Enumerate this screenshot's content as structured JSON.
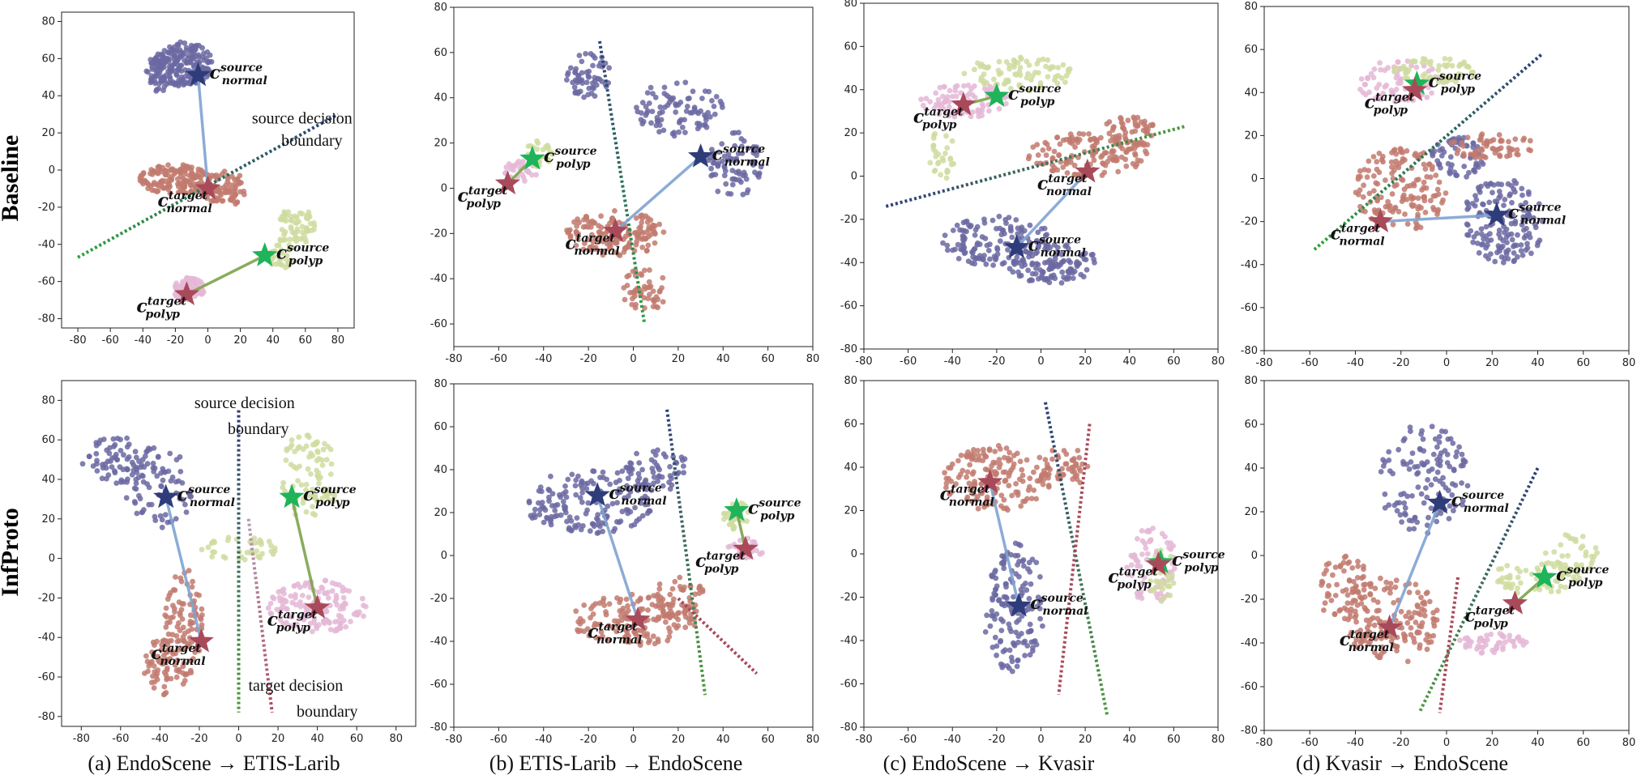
{
  "row_labels": [
    "Baseline",
    "InfProto"
  ],
  "captions": [
    "(a) EndoScene → ETIS-Larib",
    "(b) ETIS-Larib → EndoScene",
    "(c) EndoScene → Kvasir",
    "(d) Kvasir → EndoScene"
  ],
  "colors": {
    "normal": "#6b68a2",
    "polyp_target": "#e4b7d6",
    "polyp_source": "#cfdca0",
    "target_normal": "#c27a6f",
    "star_source_normal": "#2e3d7a",
    "star_target": "#a94a5a",
    "star_source_polyp": "#1fb35a"
  },
  "chart_data": [
    {
      "id": "baseline-a",
      "type": "scatter",
      "xlim": [
        -90,
        90
      ],
      "ylim": [
        -85,
        85
      ],
      "xticks": [
        -80,
        -60,
        -40,
        -20,
        0,
        20,
        40,
        60,
        80
      ],
      "yticks": [
        -80,
        -60,
        -40,
        -20,
        0,
        20,
        40,
        60,
        80
      ],
      "prototypes": [
        {
          "label": "c",
          "sup": "source",
          "sub": "normal",
          "x": -6,
          "y": 51,
          "color": "#2e3d7a"
        },
        {
          "label": "c",
          "sup": "target",
          "sub": "normal",
          "x": 0,
          "y": -10,
          "color": "#a94a5a"
        },
        {
          "label": "c",
          "sup": "source",
          "sub": "polyp",
          "x": 35,
          "y": -46,
          "color": "#1fb35a"
        },
        {
          "label": "c",
          "sup": "target",
          "sub": "polyp",
          "x": -13,
          "y": -67,
          "color": "#a94a5a"
        }
      ],
      "annotations": [
        {
          "text": "source decision",
          "x": 58,
          "y": 25
        },
        {
          "text": "boundary",
          "x": 64,
          "y": 13
        }
      ]
    },
    {
      "id": "baseline-b",
      "type": "scatter",
      "xlim": [
        -80,
        80
      ],
      "ylim": [
        -70,
        80
      ],
      "xticks": [
        -80,
        -60,
        -40,
        -20,
        0,
        20,
        40,
        60,
        80
      ],
      "yticks": [
        -60,
        -40,
        -20,
        0,
        20,
        40,
        60,
        80
      ],
      "prototypes": [
        {
          "label": "c",
          "sup": "source",
          "sub": "normal",
          "x": 30,
          "y": 14,
          "color": "#2e3d7a"
        },
        {
          "label": "c",
          "sup": "target",
          "sub": "normal",
          "x": -8,
          "y": -19,
          "color": "#a94a5a"
        },
        {
          "label": "c",
          "sup": "source",
          "sub": "polyp",
          "x": -45,
          "y": 13,
          "color": "#1fb35a"
        },
        {
          "label": "c",
          "sup": "target",
          "sub": "polyp",
          "x": -56,
          "y": 2,
          "color": "#a94a5a"
        }
      ],
      "annotations": []
    },
    {
      "id": "baseline-c",
      "type": "scatter",
      "xlim": [
        -80,
        80
      ],
      "ylim": [
        -80,
        80
      ],
      "xticks": [
        -80,
        -60,
        -40,
        -20,
        0,
        20,
        40,
        60,
        80
      ],
      "yticks": [
        -80,
        -60,
        -40,
        -20,
        0,
        20,
        40,
        60,
        80
      ],
      "prototypes": [
        {
          "label": "c",
          "sup": "source",
          "sub": "normal",
          "x": -11,
          "y": -33,
          "color": "#2e3d7a"
        },
        {
          "label": "c",
          "sup": "target",
          "sub": "normal",
          "x": 21,
          "y": 2,
          "color": "#a94a5a"
        },
        {
          "label": "c",
          "sup": "source",
          "sub": "polyp",
          "x": -20,
          "y": 37,
          "color": "#1fb35a"
        },
        {
          "label": "c",
          "sup": "target",
          "sub": "polyp",
          "x": -35,
          "y": 33,
          "color": "#a94a5a"
        }
      ],
      "annotations": []
    },
    {
      "id": "baseline-d",
      "type": "scatter",
      "xlim": [
        -80,
        80
      ],
      "ylim": [
        -80,
        80
      ],
      "xticks": [
        -80,
        -60,
        -40,
        -20,
        0,
        20,
        40,
        60,
        80
      ],
      "yticks": [
        -80,
        -60,
        -40,
        -20,
        0,
        20,
        40,
        60,
        80
      ],
      "prototypes": [
        {
          "label": "c",
          "sup": "source",
          "sub": "normal",
          "x": 22,
          "y": -17,
          "color": "#2e3d7a"
        },
        {
          "label": "c",
          "sup": "target",
          "sub": "normal",
          "x": -29,
          "y": -20,
          "color": "#a94a5a"
        },
        {
          "label": "c",
          "sup": "source",
          "sub": "polyp",
          "x": -13,
          "y": 44,
          "color": "#1fb35a"
        },
        {
          "label": "c",
          "sup": "target",
          "sub": "polyp",
          "x": -14,
          "y": 41,
          "color": "#a94a5a"
        }
      ],
      "annotations": []
    },
    {
      "id": "infproto-a",
      "type": "scatter",
      "xlim": [
        -90,
        90
      ],
      "ylim": [
        -85,
        90
      ],
      "xticks": [
        -80,
        -60,
        -40,
        -20,
        0,
        20,
        40,
        60,
        80
      ],
      "yticks": [
        -80,
        -60,
        -40,
        -20,
        0,
        20,
        40,
        60,
        80
      ],
      "prototypes": [
        {
          "label": "c",
          "sup": "source",
          "sub": "normal",
          "x": -37,
          "y": 31,
          "color": "#2e3d7a"
        },
        {
          "label": "c",
          "sup": "target",
          "sub": "normal",
          "x": -19,
          "y": -42,
          "color": "#a94a5a"
        },
        {
          "label": "c",
          "sup": "source",
          "sub": "polyp",
          "x": 27,
          "y": 31,
          "color": "#1fb35a"
        },
        {
          "label": "c",
          "sup": "target",
          "sub": "polyp",
          "x": 40,
          "y": -25,
          "color": "#a94a5a"
        }
      ],
      "annotations": [
        {
          "text": "source decision",
          "x": 3,
          "y": 76
        },
        {
          "text": "boundary",
          "x": 10,
          "y": 63
        },
        {
          "text": "target decision",
          "x": 29,
          "y": -67
        },
        {
          "text": "boundary",
          "x": 45,
          "y": -80
        }
      ]
    },
    {
      "id": "infproto-b",
      "type": "scatter",
      "xlim": [
        -80,
        80
      ],
      "ylim": [
        -80,
        80
      ],
      "xticks": [
        -80,
        -60,
        -40,
        -20,
        0,
        20,
        40,
        60,
        80
      ],
      "yticks": [
        -80,
        -60,
        -40,
        -20,
        0,
        20,
        40,
        60,
        80
      ],
      "prototypes": [
        {
          "label": "c",
          "sup": "source",
          "sub": "normal",
          "x": -16,
          "y": 28,
          "color": "#2e3d7a"
        },
        {
          "label": "c",
          "sup": "target",
          "sub": "normal",
          "x": 2,
          "y": -30,
          "color": "#a94a5a"
        },
        {
          "label": "c",
          "sup": "source",
          "sub": "polyp",
          "x": 46,
          "y": 21,
          "color": "#1fb35a"
        },
        {
          "label": "c",
          "sup": "target",
          "sub": "polyp",
          "x": 50,
          "y": 3,
          "color": "#a94a5a"
        }
      ],
      "annotations": []
    },
    {
      "id": "infproto-c",
      "type": "scatter",
      "xlim": [
        -80,
        80
      ],
      "ylim": [
        -80,
        80
      ],
      "xticks": [
        -80,
        -60,
        -40,
        -20,
        0,
        20,
        40,
        60,
        80
      ],
      "yticks": [
        -80,
        -60,
        -40,
        -20,
        0,
        20,
        40,
        60,
        80
      ],
      "prototypes": [
        {
          "label": "c",
          "sup": "source",
          "sub": "normal",
          "x": -10,
          "y": -24,
          "color": "#2e3d7a"
        },
        {
          "label": "c",
          "sup": "target",
          "sub": "normal",
          "x": -23,
          "y": 33,
          "color": "#a94a5a"
        },
        {
          "label": "c",
          "sup": "source",
          "sub": "polyp",
          "x": 54,
          "y": -4,
          "color": "#1fb35a"
        },
        {
          "label": "c",
          "sup": "target",
          "sub": "polyp",
          "x": 53,
          "y": -5,
          "color": "#a94a5a"
        }
      ],
      "annotations": []
    },
    {
      "id": "infproto-d",
      "type": "scatter",
      "xlim": [
        -80,
        80
      ],
      "ylim": [
        -80,
        80
      ],
      "xticks": [
        -80,
        -60,
        -40,
        -20,
        0,
        20,
        40,
        60,
        80
      ],
      "yticks": [
        -80,
        -60,
        -40,
        -20,
        0,
        20,
        40,
        60,
        80
      ],
      "prototypes": [
        {
          "label": "c",
          "sup": "source",
          "sub": "normal",
          "x": -3,
          "y": 24,
          "color": "#2e3d7a"
        },
        {
          "label": "c",
          "sup": "target",
          "sub": "normal",
          "x": -25,
          "y": -33,
          "color": "#a94a5a"
        },
        {
          "label": "c",
          "sup": "source",
          "sub": "polyp",
          "x": 43,
          "y": -10,
          "color": "#1fb35a"
        },
        {
          "label": "c",
          "sup": "target",
          "sub": "polyp",
          "x": 30,
          "y": -22,
          "color": "#a94a5a"
        }
      ],
      "annotations": []
    }
  ]
}
